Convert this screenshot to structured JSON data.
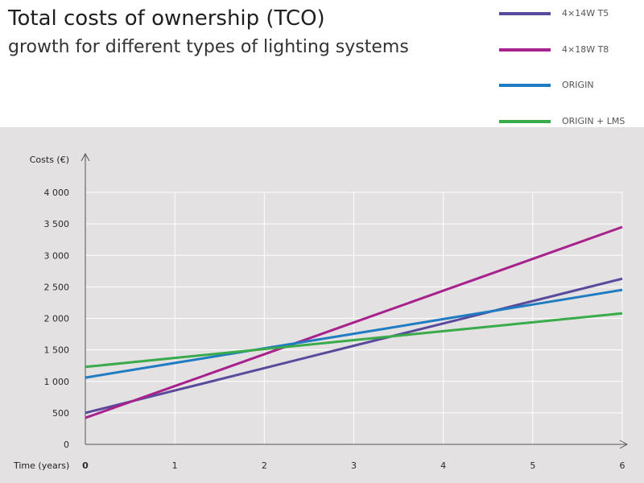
{
  "header": {
    "title": "Total costs of ownership (TCO)",
    "subtitle": "growth for different types of lighting systems"
  },
  "colors": {
    "background": "#ffffff",
    "plot_background": "#e3e1e2",
    "grid": "#ffffff",
    "axis": "#555555"
  },
  "chart_data": {
    "type": "line",
    "title": "Total costs of ownership (TCO)",
    "subtitle": "growth for different types of lighting systems",
    "xlabel": "Time (years)",
    "ylabel": "Costs (€)",
    "x": [
      0,
      1,
      2,
      3,
      4,
      5,
      6
    ],
    "x_tick_labels": [
      "0",
      "1",
      "2",
      "3",
      "4",
      "5",
      "6"
    ],
    "xlim": [
      0,
      6
    ],
    "ylim": [
      0,
      4000
    ],
    "y_ticks": [
      0,
      500,
      1000,
      1500,
      2000,
      2500,
      3000,
      3500,
      4000
    ],
    "y_tick_labels": [
      "0",
      "500",
      "1 000",
      "1 500",
      "2 000",
      "2 500",
      "3 000",
      "3 500",
      "4 000"
    ],
    "grid": true,
    "legend_position": "top-right",
    "series": [
      {
        "name": "4×14W T5",
        "color": "#5a4a9b",
        "values": [
          500,
          855,
          1210,
          1565,
          1920,
          2275,
          2630
        ]
      },
      {
        "name": "4×18W T8",
        "color": "#a8228e",
        "values": [
          420,
          925,
          1430,
          1935,
          2440,
          2945,
          3450
        ]
      },
      {
        "name": "ORIGIN",
        "color": "#1f7bc2",
        "values": [
          1060,
          1292,
          1524,
          1756,
          1988,
          2220,
          2452
        ]
      },
      {
        "name": "ORIGIN + LMS",
        "color": "#3aab4a",
        "values": [
          1230,
          1372,
          1513,
          1655,
          1797,
          1938,
          2080
        ]
      }
    ]
  }
}
